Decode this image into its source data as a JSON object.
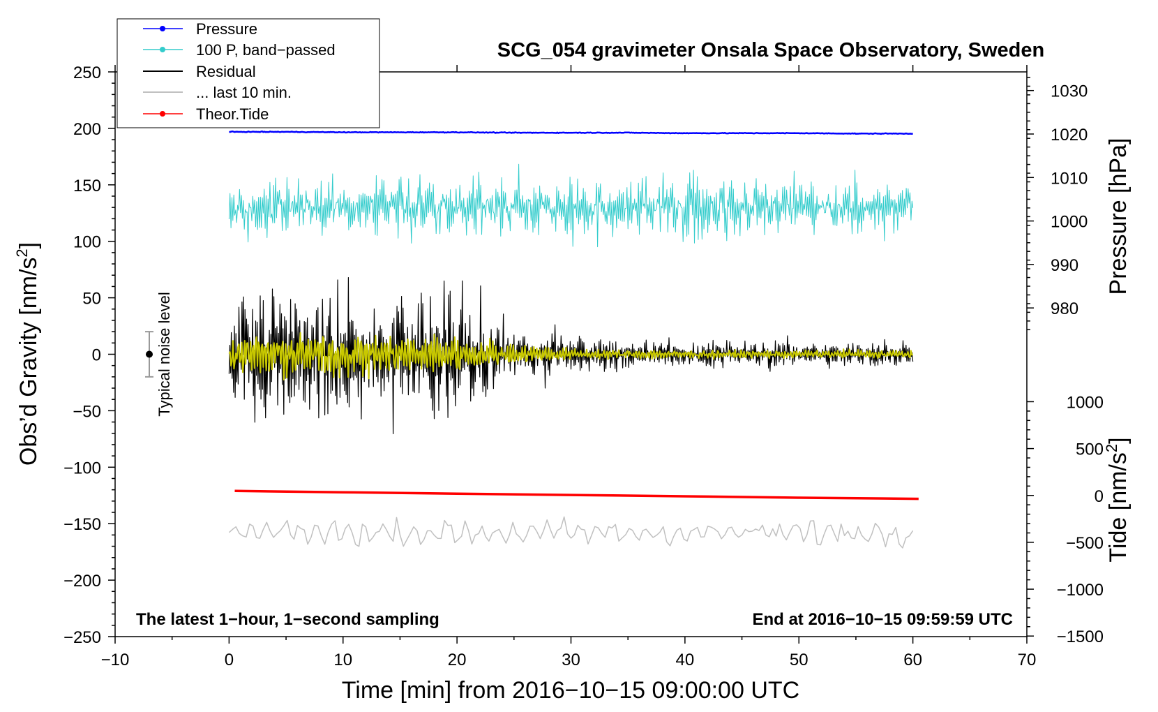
{
  "chart_data": {
    "type": "line",
    "title": "SCG_054 gravimeter Onsala Space Observatory, Sweden",
    "xlabel": "Time [min] from 2016−10−15 09:00:00 UTC",
    "ylabel_left": "Obs’d Gravity [nm/s²]",
    "ylabel_left_parts": [
      "Obs’d Gravity [nm/s",
      "2",
      "]"
    ],
    "ylabel_right_pressure": "Pressure [hPa]",
    "ylabel_right_tide": "Tide [nm/s²]",
    "ylabel_right_tide_parts": [
      "Tide [nm/s",
      "2",
      "]"
    ],
    "xlim": [
      -10,
      70
    ],
    "ylim_left": [
      -250,
      250
    ],
    "x_ticks": [
      -10,
      0,
      10,
      20,
      30,
      40,
      50,
      60,
      70
    ],
    "x_tick_labels": [
      "−10",
      "0",
      "10",
      "20",
      "30",
      "40",
      "50",
      "60",
      "70"
    ],
    "y_left_ticks": [
      250,
      200,
      150,
      100,
      50,
      0,
      -50,
      -100,
      -150,
      -200,
      -250
    ],
    "y_left_tick_labels": [
      "250",
      "200",
      "150",
      "100",
      "50",
      "0",
      "−50",
      "−100",
      "−150",
      "−200",
      "−250"
    ],
    "pressure_axis": {
      "ticks": [
        1030,
        1020,
        1010,
        1000,
        990,
        980
      ],
      "tick_labels": [
        "1030",
        "1020",
        "1010",
        "1000",
        "990",
        "980"
      ],
      "left_value_at_1020": 195,
      "left_units_per_hPa": 3.85
    },
    "tide_axis": {
      "ticks": [
        1000,
        500,
        0,
        -500,
        -1000,
        -1500
      ],
      "tick_labels": [
        "1000",
        "500",
        "0",
        "−500",
        "−1000",
        "−1500"
      ],
      "left_value_at_0": -125,
      "left_units_per_nms2": 0.083
    },
    "series": [
      {
        "name": "Pressure",
        "color": "#0000ff",
        "x": [
          0,
          5,
          10,
          15,
          20,
          25,
          30,
          35,
          40,
          45,
          50,
          55,
          60
        ],
        "y": [
          1020.5,
          1020.5,
          1020.4,
          1020.4,
          1020.4,
          1020.3,
          1020.3,
          1020.3,
          1020.2,
          1020.2,
          1020.2,
          1020.1,
          1020.1
        ]
      },
      {
        "name": "100 P, band−passed",
        "color": "#33cccc",
        "center": 130,
        "amplitude": 22,
        "x_range": [
          0,
          60
        ]
      },
      {
        "name": "Residual",
        "color": "#000000",
        "center": 0,
        "amplitude_envelope": {
          "x": [
            0,
            3,
            6,
            10,
            13,
            16,
            19,
            21,
            25,
            30,
            35,
            40,
            50,
            60
          ],
          "y": [
            30,
            60,
            55,
            50,
            55,
            50,
            55,
            45,
            25,
            15,
            13,
            12,
            11,
            11
          ]
        },
        "x_range": [
          0,
          60
        ]
      },
      {
        "name": "Residual (filtered)",
        "color": "#c8c800",
        "center": 0,
        "amplitude_envelope": {
          "x": [
            0,
            3,
            10,
            20,
            25,
            30,
            40,
            60
          ],
          "y": [
            15,
            22,
            22,
            18,
            10,
            5,
            4,
            4
          ]
        },
        "x_range": [
          0,
          60
        ]
      },
      {
        "name": "... last 10 min.",
        "color": "#c0c0c0",
        "center": -158,
        "amplitude": 12,
        "x_range": [
          0,
          60
        ]
      },
      {
        "name": "Theor.Tide",
        "color": "#ff0000",
        "x": [
          0.5,
          10,
          20,
          30,
          40,
          50,
          60.5
        ],
        "y": [
          -121,
          -122.2,
          -123.5,
          -124.6,
          -125.8,
          -127,
          -128
        ]
      }
    ],
    "noise_bar": {
      "x": -7,
      "center": 0,
      "half_range": 20,
      "label": "Typical noise level"
    },
    "legend": [
      "Pressure",
      "100 P, band−passed",
      "Residual",
      "... last 10 min.",
      "Theor.Tide"
    ],
    "legend_position": "top-left, outside axes",
    "annotations": {
      "bottom_left": "The latest 1−hour, 1−second sampling",
      "bottom_right": "End at 2016−10−15 09:59:59 UTC"
    }
  }
}
